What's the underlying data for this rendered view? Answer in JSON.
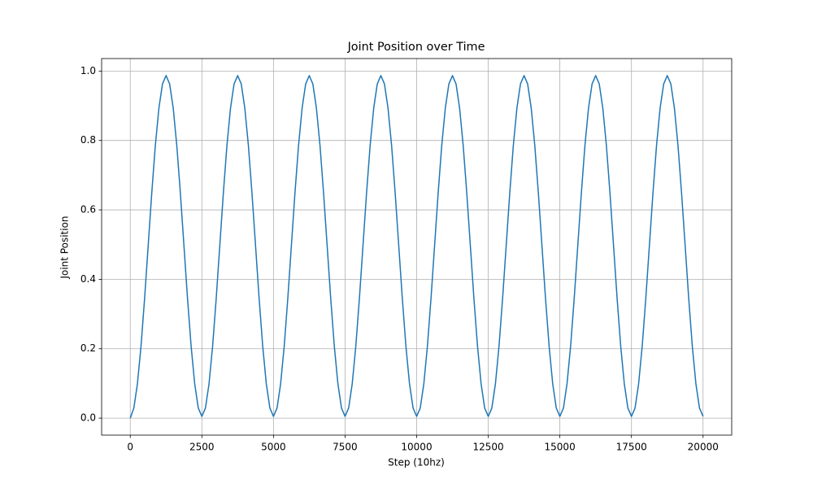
{
  "chart_data": {
    "type": "line",
    "title": "Joint Position over Time",
    "xlabel": "Step (10hz)",
    "ylabel": "Joint Position",
    "x": [
      0,
      125,
      250,
      375,
      500,
      625,
      750,
      875,
      1000,
      1125,
      1250,
      1375,
      1500,
      1625,
      1750,
      1875,
      2000,
      2125,
      2250,
      2375,
      2500,
      2625,
      2750,
      2875,
      3000,
      3125,
      3250,
      3375,
      3500,
      3625,
      3750,
      3875,
      4000,
      4125,
      4250,
      4375,
      4500,
      4625,
      4750,
      4875,
      5000,
      5125,
      5250,
      5375,
      5500,
      5625,
      5750,
      5875,
      6000,
      6125,
      6250,
      6375,
      6500,
      6625,
      6750,
      6875,
      7000,
      7125,
      7250,
      7375,
      7500,
      7625,
      7750,
      7875,
      8000,
      8125,
      8250,
      8375,
      8500,
      8625,
      8750,
      8875,
      9000,
      9125,
      9250,
      9375,
      9500,
      9625,
      9750,
      9875,
      10000,
      10125,
      10250,
      10375,
      10500,
      10625,
      10750,
      10875,
      11000,
      11125,
      11250,
      11375,
      11500,
      11625,
      11750,
      11875,
      12000,
      12125,
      12250,
      12375,
      12500,
      12625,
      12750,
      12875,
      13000,
      13125,
      13250,
      13375,
      13500,
      13625,
      13750,
      13875,
      14000,
      14125,
      14250,
      14375,
      14500,
      14625,
      14750,
      14875,
      15000,
      15125,
      15250,
      15375,
      15500,
      15625,
      15750,
      15875,
      16000,
      16125,
      16250,
      16375,
      16500,
      16625,
      16750,
      16875,
      17000,
      17125,
      17250,
      17375,
      17500,
      17625,
      17750,
      17875,
      18000,
      18125,
      18250,
      18375,
      18500,
      18625,
      18750,
      18875,
      19000,
      19125,
      19250,
      19375,
      19500,
      19625,
      19750,
      19875,
      20000
    ],
    "values": [
      0,
      0.029,
      0.099,
      0.207,
      0.344,
      0.496,
      0.648,
      0.785,
      0.893,
      0.963,
      0.987,
      0.963,
      0.893,
      0.785,
      0.648,
      0.496,
      0.344,
      0.207,
      0.099,
      0.029,
      0.005,
      0.029,
      0.099,
      0.207,
      0.344,
      0.496,
      0.648,
      0.785,
      0.893,
      0.963,
      0.987,
      0.963,
      0.893,
      0.785,
      0.648,
      0.496,
      0.344,
      0.207,
      0.099,
      0.029,
      0.005,
      0.029,
      0.099,
      0.207,
      0.344,
      0.496,
      0.648,
      0.785,
      0.893,
      0.963,
      0.987,
      0.963,
      0.893,
      0.785,
      0.648,
      0.496,
      0.344,
      0.207,
      0.099,
      0.029,
      0.005,
      0.029,
      0.099,
      0.207,
      0.344,
      0.496,
      0.648,
      0.785,
      0.893,
      0.963,
      0.987,
      0.963,
      0.893,
      0.785,
      0.648,
      0.496,
      0.344,
      0.207,
      0.099,
      0.029,
      0.005,
      0.029,
      0.099,
      0.207,
      0.344,
      0.496,
      0.648,
      0.785,
      0.893,
      0.963,
      0.987,
      0.963,
      0.893,
      0.785,
      0.648,
      0.496,
      0.344,
      0.207,
      0.099,
      0.029,
      0.005,
      0.029,
      0.099,
      0.207,
      0.344,
      0.496,
      0.648,
      0.785,
      0.893,
      0.963,
      0.987,
      0.963,
      0.893,
      0.785,
      0.648,
      0.496,
      0.344,
      0.207,
      0.099,
      0.029,
      0.005,
      0.029,
      0.099,
      0.207,
      0.344,
      0.496,
      0.648,
      0.785,
      0.893,
      0.963,
      0.987,
      0.963,
      0.893,
      0.785,
      0.648,
      0.496,
      0.344,
      0.207,
      0.099,
      0.029,
      0.005,
      0.029,
      0.099,
      0.207,
      0.344,
      0.496,
      0.648,
      0.785,
      0.893,
      0.963,
      0.987,
      0.963,
      0.893,
      0.785,
      0.648,
      0.496,
      0.344,
      0.207,
      0.099,
      0.029,
      0.005
    ],
    "color": "#1f77b4",
    "xlim": [
      -1000,
      21000
    ],
    "ylim": [
      -0.049,
      1.036
    ],
    "xticks": [
      0,
      2500,
      5000,
      7500,
      10000,
      12500,
      15000,
      17500,
      20000
    ],
    "yticks": [
      {
        "value": 0,
        "label": "0.0"
      },
      {
        "value": 0.2,
        "label": "0.2"
      },
      {
        "value": 0.4,
        "label": "0.4"
      },
      {
        "value": 0.6,
        "label": "0.6"
      },
      {
        "value": 0.8,
        "label": "0.8"
      },
      {
        "value": 1,
        "label": "1.0"
      }
    ],
    "grid": true
  }
}
